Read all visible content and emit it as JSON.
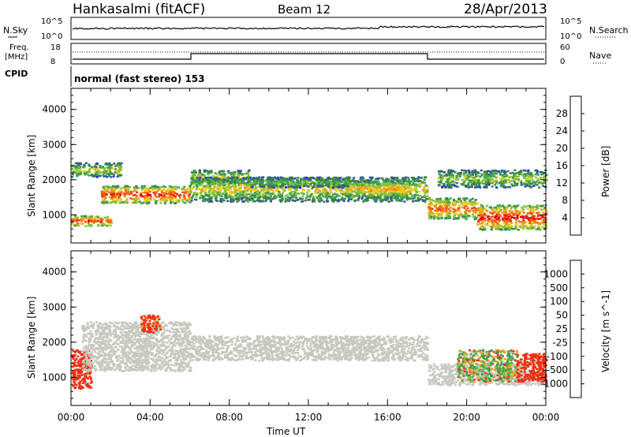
{
  "header": {
    "title": "Hankasalmi (fitACF)",
    "beam": "Beam 12",
    "date": "28/Apr/2013"
  },
  "top_panels": {
    "nsky_label": "N.Sky",
    "nsky_ticks": [
      "10^5",
      "10^0"
    ],
    "nsearch_label": "N.Search",
    "nsearch_ticks": [
      "10^5",
      "10^0"
    ],
    "freq_label_1": "Freq.",
    "freq_label_2": "[MHz]",
    "freq_ticks": [
      "18",
      "8"
    ],
    "nave_label": "Nave",
    "nave_ticks": [
      "60",
      "0"
    ],
    "cpid_label": "CPID",
    "cpid_text": "normal (fast stereo) 153"
  },
  "colors": {
    "power_scale": [
      "#1a1aff",
      "#2a4fb0",
      "#3a7a4a",
      "#3c9a50",
      "#7ec23a",
      "#f2c81c",
      "#f59a14",
      "#f06a10",
      "#ee3010",
      "#dd0000"
    ],
    "velocity_scale": [
      "#dd0000",
      "#ee3010",
      "#f06a10",
      "#f59a14",
      "#c8c8c0",
      "#c8c8c0",
      "#7ec23a",
      "#3c9a50",
      "#2a4fb0",
      "#1a1aff"
    ]
  },
  "chart_data": [
    {
      "type": "heatmap",
      "name": "power",
      "ylabel": "Slant Range [km]",
      "yticks": [
        "4000",
        "3000",
        "2000",
        "1000"
      ],
      "ylim": [
        200,
        4600
      ],
      "xlim": [
        0,
        24
      ],
      "colorbar_label": "Power [dB]",
      "colorbar_ticks": [
        "28",
        "24",
        "20",
        "16",
        "12",
        "8",
        "4"
      ],
      "colorbar_range": [
        0,
        30
      ],
      "bands": [
        {
          "t": [
            0.0,
            2.0
          ],
          "range": [
            700,
            1000
          ],
          "value": 27
        },
        {
          "t": [
            0.0,
            2.5
          ],
          "range": [
            2100,
            2500
          ],
          "value": 16
        },
        {
          "t": [
            1.5,
            6.0
          ],
          "range": [
            1350,
            1850
          ],
          "value": 27
        },
        {
          "t": [
            6.0,
            9.0
          ],
          "range": [
            1900,
            2300
          ],
          "value": 16
        },
        {
          "t": [
            6.0,
            18.0
          ],
          "range": [
            1400,
            2100
          ],
          "value": 17
        },
        {
          "t": [
            9.0,
            14.0
          ],
          "range": [
            1800,
            2100
          ],
          "value": 13
        },
        {
          "t": [
            14.0,
            17.0
          ],
          "range": [
            1500,
            2000
          ],
          "value": 20
        },
        {
          "t": [
            18.0,
            20.5
          ],
          "range": [
            900,
            1500
          ],
          "value": 24
        },
        {
          "t": [
            20.5,
            24.0
          ],
          "range": [
            600,
            1300
          ],
          "value": 28
        },
        {
          "t": [
            18.5,
            24.0
          ],
          "range": [
            1800,
            2300
          ],
          "value": 15
        }
      ]
    },
    {
      "type": "heatmap",
      "name": "velocity",
      "ylabel": "Slant Range [km]",
      "yticks": [
        "4000",
        "3000",
        "2000",
        "1000"
      ],
      "ylim": [
        200,
        4600
      ],
      "xlim": [
        0,
        24
      ],
      "colorbar_label": "Velocity [m s^-1]",
      "colorbar_ticks": [
        "1000",
        "500",
        "100",
        "50",
        "25",
        "-25",
        "-100",
        "-500",
        "-1000"
      ],
      "xticks": [
        "00:00",
        "04:00",
        "08:00",
        "12:00",
        "16:00",
        "20:00",
        "00:00"
      ],
      "xlabel": "Time UT",
      "bands": [
        {
          "t": [
            0.0,
            1.0
          ],
          "range": [
            700,
            1800
          ],
          "value": -300
        },
        {
          "t": [
            0.5,
            6.0
          ],
          "range": [
            1200,
            2600
          ],
          "value": 0
        },
        {
          "t": [
            6.0,
            18.0
          ],
          "range": [
            1500,
            2200
          ],
          "value": 0
        },
        {
          "t": [
            3.5,
            4.5
          ],
          "range": [
            2300,
            2800
          ],
          "value": -200
        },
        {
          "t": [
            18.0,
            24.0
          ],
          "range": [
            800,
            1400
          ],
          "value": 0
        },
        {
          "t": [
            19.5,
            22.5
          ],
          "range": [
            900,
            1800
          ],
          "value": 50
        },
        {
          "t": [
            22.5,
            24.0
          ],
          "range": [
            900,
            1700
          ],
          "value": -300
        }
      ]
    }
  ]
}
